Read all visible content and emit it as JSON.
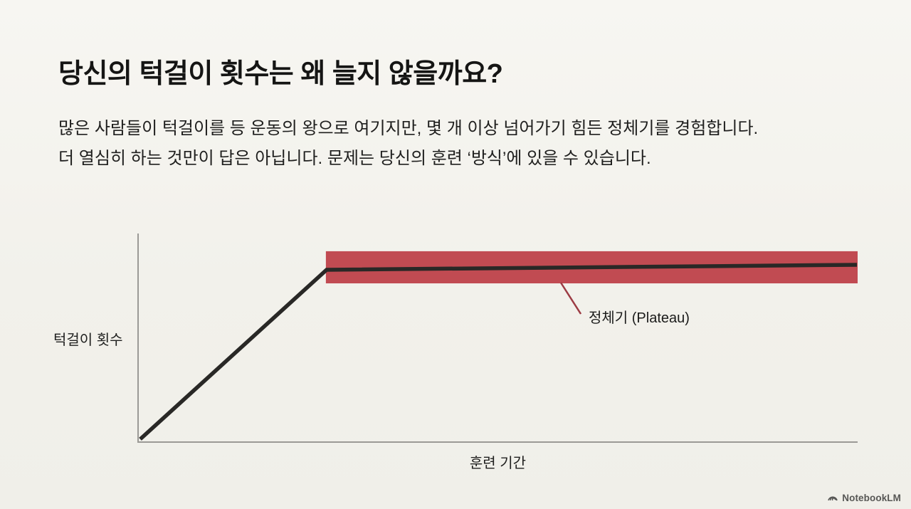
{
  "slide": {
    "title": "당신의 턱걸이 횟수는 왜 늘지 않을까요?",
    "body_line_1": "많은 사람들이 턱걸이를 등 운동의 왕으로 여기지만, 몇 개 이상 넘어가기 힘든 정체기를 경험합니다.",
    "body_line_2": "더 열심히 하는 것만이 답은 아닙니다. 문제는 당신의 훈련 ‘방식’에 있을 수 있습니다."
  },
  "chart": {
    "y_axis_label": "턱걸이 횟수",
    "x_axis_label": "훈련 기간",
    "annotation_label": "정체기 (Plateau)"
  },
  "footer": {
    "brand": "NotebookLM",
    "logo_icon": "notebooklm-swirl-icon"
  },
  "colors": {
    "background": "#f2f1eb",
    "title_text": "#151514",
    "body_text": "#1f1f1e",
    "trend_line": "#292826",
    "axis_line": "#9b9a96",
    "plateau_band": "#c14b52",
    "annotation_leader": "#9c3b43",
    "footer_text": "#575755"
  },
  "chart_data": {
    "type": "line",
    "title": "",
    "xlabel": "훈련 기간",
    "ylabel": "턱걸이 횟수",
    "x_ticks": [],
    "y_ticks": [],
    "grid": false,
    "legend": false,
    "description": "Conceptual curve: pull-up count rises steadily during early training, then flattens into a plateau (정체기) highlighted by a red band for the remainder of the training period.",
    "points": [
      [
        0.003,
        0.014
      ],
      [
        0.262,
        0.826
      ],
      [
        0.999,
        0.85
      ]
    ],
    "plateau_band": {
      "x0": 0.261,
      "x1": 1.0,
      "y0": 0.761,
      "y1": 0.915
    },
    "annotation": {
      "text": "정체기 (Plateau)",
      "leader": {
        "x1": 0.5875,
        "y1": 0.7645,
        "x2": 0.6153,
        "y2": 0.6143
      }
    },
    "axis_range_note": "axes unlabeled / qualitative, values normalized 0-1"
  }
}
